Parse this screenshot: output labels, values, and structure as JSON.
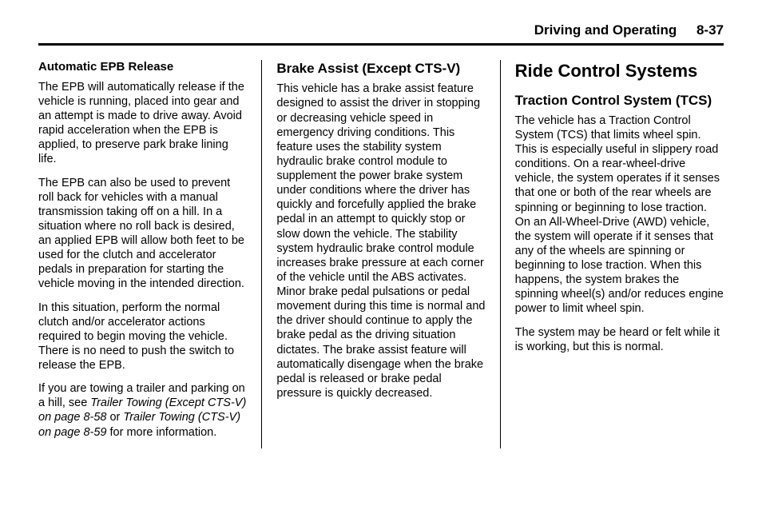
{
  "header": {
    "section": "Driving and Operating",
    "page": "8-37"
  },
  "col1": {
    "h1": "Automatic EPB Release",
    "p1": "The EPB will automatically release if the vehicle is running, placed into gear and an attempt is made to drive away. Avoid rapid acceleration when the EPB is applied, to preserve park brake lining life.",
    "p2": "The EPB can also be used to prevent roll back for vehicles with a manual transmission taking off on a hill. In a situation where no roll back is desired, an applied EPB will allow both feet to be used for the clutch and accelerator pedals in preparation for starting the vehicle moving in the intended direction.",
    "p3": "In this situation, perform the normal clutch and/or accelerator actions required to begin moving the vehicle. There is no need to push the switch to release the EPB.",
    "p4a": "If you are towing a trailer and parking on a hill, see ",
    "p4b": "Trailer Towing (Except CTS-V) on page 8-58",
    "p4c": " or ",
    "p4d": "Trailer Towing (CTS-V) on page 8-59",
    "p4e": " for more information."
  },
  "col2": {
    "h1": "Brake Assist (Except CTS-V)",
    "p1": "This vehicle has a brake assist feature designed to assist the driver in stopping or decreasing vehicle speed in emergency driving conditions. This feature uses the stability system hydraulic brake control module to supplement the power brake system under conditions where the driver has quickly and forcefully applied the brake pedal in an attempt to quickly stop or slow down the vehicle. The stability system hydraulic brake control module increases brake pressure at each corner of the vehicle until the ABS activates. Minor brake pedal pulsations or pedal movement during this time is normal and the driver should continue to apply the brake pedal as the driving situation dictates. The brake assist feature will automatically disengage when the brake pedal is released or brake pedal pressure is quickly decreased."
  },
  "col3": {
    "hmain": "Ride Control Systems",
    "h1": "Traction Control System (TCS)",
    "p1": "The vehicle has a Traction Control System (TCS) that limits wheel spin. This is especially useful in slippery road conditions. On a rear-wheel-drive vehicle, the system operates if it senses that one or both of the rear wheels are spinning or beginning to lose traction. On an All-Wheel-Drive (AWD) vehicle, the system will operate if it senses that any of the wheels are spinning or beginning to lose traction. When this happens, the system brakes the spinning wheel(s) and/or reduces engine power to limit wheel spin.",
    "p2": "The system may be heard or felt while it is working, but this is normal."
  }
}
